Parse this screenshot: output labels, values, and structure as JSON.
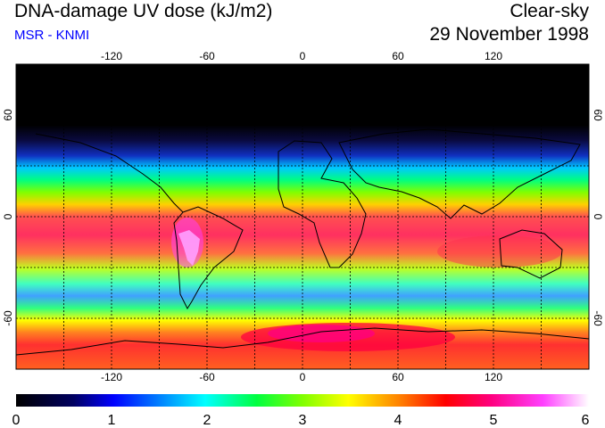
{
  "header": {
    "title": "DNA-damage UV dose (kJ/m2)",
    "subtitle": "MSR - KNMI",
    "sky_condition": "Clear-sky",
    "date": "29 November 1998"
  },
  "map": {
    "lon_ticks": [
      "-120",
      "-60",
      "0",
      "60",
      "120"
    ],
    "lat_ticks_left": [
      "60",
      "0",
      "-60"
    ],
    "lat_ticks_right": [
      "60",
      "0",
      "-60"
    ],
    "lon_range": [
      -180,
      180
    ],
    "lat_range": [
      -90,
      90
    ],
    "gridlines": "dotted, every 30 degrees"
  },
  "colorbar": {
    "labels": [
      "0",
      "1",
      "2",
      "3",
      "4",
      "5",
      "6"
    ],
    "colors": [
      "#000000",
      "#0000c8",
      "#0064ff",
      "#00ffff",
      "#00ff64",
      "#64ff00",
      "#ffff00",
      "#ff9600",
      "#ff0000",
      "#ff0080",
      "#ff00ff",
      "#ffffff"
    ]
  }
}
